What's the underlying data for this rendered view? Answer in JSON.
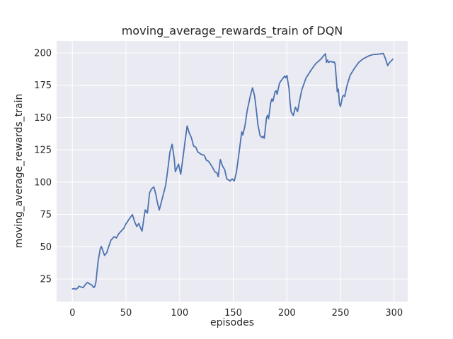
{
  "chart_data": {
    "type": "line",
    "title": "moving_average_rewards_train of DQN",
    "xlabel": "episodes",
    "ylabel": "moving_average_rewards_train",
    "legend": "none",
    "grid": true,
    "xlim": [
      -14.7,
      312.7
    ],
    "ylim": [
      7.5,
      209.3
    ],
    "x_ticks": [
      0,
      50,
      100,
      150,
      200,
      250,
      300
    ],
    "y_ticks": [
      25,
      50,
      75,
      100,
      125,
      150,
      175,
      200
    ],
    "style": {
      "fig_bg": "#ffffff",
      "axes_bg": "#eaeaf2",
      "grid_color": "#ffffff",
      "line_color": "#4c72b0",
      "text_color": "#262626",
      "line_width": 1.8
    },
    "series": [
      {
        "name": "moving_average_rewards_train",
        "points": [
          [
            0,
            17.3
          ],
          [
            2,
            17.6
          ],
          [
            3,
            16.9
          ],
          [
            5,
            18.0
          ],
          [
            6,
            19.4
          ],
          [
            8,
            18.8
          ],
          [
            10,
            18.2
          ],
          [
            12,
            20.5
          ],
          [
            14,
            22.3
          ],
          [
            16,
            21.2
          ],
          [
            18,
            20.4
          ],
          [
            20,
            18.3
          ],
          [
            21,
            19.5
          ],
          [
            22,
            23.0
          ],
          [
            24,
            38.7
          ],
          [
            26,
            48.5
          ],
          [
            27,
            50.2
          ],
          [
            29,
            45.5
          ],
          [
            30,
            43.2
          ],
          [
            32,
            45.2
          ],
          [
            34,
            50.5
          ],
          [
            36,
            55.1
          ],
          [
            39,
            57.8
          ],
          [
            41,
            56.7
          ],
          [
            43,
            59.8
          ],
          [
            45,
            61.6
          ],
          [
            48,
            64.3
          ],
          [
            50,
            67.7
          ],
          [
            53,
            71.5
          ],
          [
            56,
            74.8
          ],
          [
            58,
            69.5
          ],
          [
            60,
            65.6
          ],
          [
            62,
            68.0
          ],
          [
            63,
            65.5
          ],
          [
            65,
            62.0
          ],
          [
            67,
            74.0
          ],
          [
            68,
            78.5
          ],
          [
            70,
            76.0
          ],
          [
            72,
            91.7
          ],
          [
            74,
            95.0
          ],
          [
            76,
            96.2
          ],
          [
            78,
            90.0
          ],
          [
            79,
            85.0
          ],
          [
            81,
            78.4
          ],
          [
            84,
            87.8
          ],
          [
            87,
            97.7
          ],
          [
            89,
            110.0
          ],
          [
            91,
            123.4
          ],
          [
            93,
            129.3
          ],
          [
            95,
            118.0
          ],
          [
            96,
            108.0
          ],
          [
            98,
            112.0
          ],
          [
            99,
            114.0
          ],
          [
            101,
            106.0
          ],
          [
            103,
            118.0
          ],
          [
            105,
            131.0
          ],
          [
            107,
            143.5
          ],
          [
            109,
            138.0
          ],
          [
            111,
            134.4
          ],
          [
            113,
            128.0
          ],
          [
            115,
            127.1
          ],
          [
            117,
            123.4
          ],
          [
            120,
            121.6
          ],
          [
            123,
            120.7
          ],
          [
            125,
            117.0
          ],
          [
            127,
            116.1
          ],
          [
            130,
            112.4
          ],
          [
            133,
            107.9
          ],
          [
            135,
            107.0
          ],
          [
            136,
            104.2
          ],
          [
            138,
            117.5
          ],
          [
            140,
            112.4
          ],
          [
            142,
            109.7
          ],
          [
            144,
            102.5
          ],
          [
            146,
            101.5
          ],
          [
            147,
            100.8
          ],
          [
            149,
            102.5
          ],
          [
            151,
            100.9
          ],
          [
            153,
            108.0
          ],
          [
            155,
            120.0
          ],
          [
            157,
            133.0
          ],
          [
            158,
            139.0
          ],
          [
            159,
            136.5
          ],
          [
            161,
            144.0
          ],
          [
            163,
            155.3
          ],
          [
            165,
            163.0
          ],
          [
            166,
            167.2
          ],
          [
            168,
            173.0
          ],
          [
            169,
            170.0
          ],
          [
            170,
            166.3
          ],
          [
            172,
            152.6
          ],
          [
            173,
            144.4
          ],
          [
            175,
            136.0
          ],
          [
            177,
            134.4
          ],
          [
            178,
            135.5
          ],
          [
            179,
            133.9
          ],
          [
            181,
            149.9
          ],
          [
            182,
            151.7
          ],
          [
            183,
            149.0
          ],
          [
            185,
            161.7
          ],
          [
            186,
            164.4
          ],
          [
            187,
            162.6
          ],
          [
            189,
            169.9
          ],
          [
            190,
            170.8
          ],
          [
            191,
            168.0
          ],
          [
            193,
            176.3
          ],
          [
            194,
            177.8
          ],
          [
            196,
            180.0
          ],
          [
            198,
            182.1
          ],
          [
            199,
            180.8
          ],
          [
            200,
            182.6
          ],
          [
            202,
            172.6
          ],
          [
            203,
            161.7
          ],
          [
            204,
            154.4
          ],
          [
            206,
            151.6
          ],
          [
            208,
            158.0
          ],
          [
            210,
            154.6
          ],
          [
            212,
            163.5
          ],
          [
            214,
            171.7
          ],
          [
            218,
            180.8
          ],
          [
            223,
            187.2
          ],
          [
            227,
            191.8
          ],
          [
            232,
            195.4
          ],
          [
            234,
            197.6
          ],
          [
            236,
            199.4
          ],
          [
            237,
            192.7
          ],
          [
            238,
            194.5
          ],
          [
            239,
            192.7
          ],
          [
            241,
            193.6
          ],
          [
            243,
            192.7
          ],
          [
            244,
            193.2
          ],
          [
            245,
            191.8
          ],
          [
            246,
            181.0
          ],
          [
            247,
            170.0
          ],
          [
            248,
            172.0
          ],
          [
            249,
            161.0
          ],
          [
            250,
            158.5
          ],
          [
            252,
            166.3
          ],
          [
            253,
            167.2
          ],
          [
            254,
            166.3
          ],
          [
            256,
            174.4
          ],
          [
            259,
            182.6
          ],
          [
            263,
            188.1
          ],
          [
            267,
            192.7
          ],
          [
            271,
            195.4
          ],
          [
            276,
            197.6
          ],
          [
            280,
            198.7
          ],
          [
            284,
            199.0
          ],
          [
            287,
            199.3
          ],
          [
            290,
            199.6
          ],
          [
            292,
            195.5
          ],
          [
            294,
            190.2
          ],
          [
            296,
            192.8
          ],
          [
            299,
            195.3
          ]
        ]
      }
    ]
  }
}
